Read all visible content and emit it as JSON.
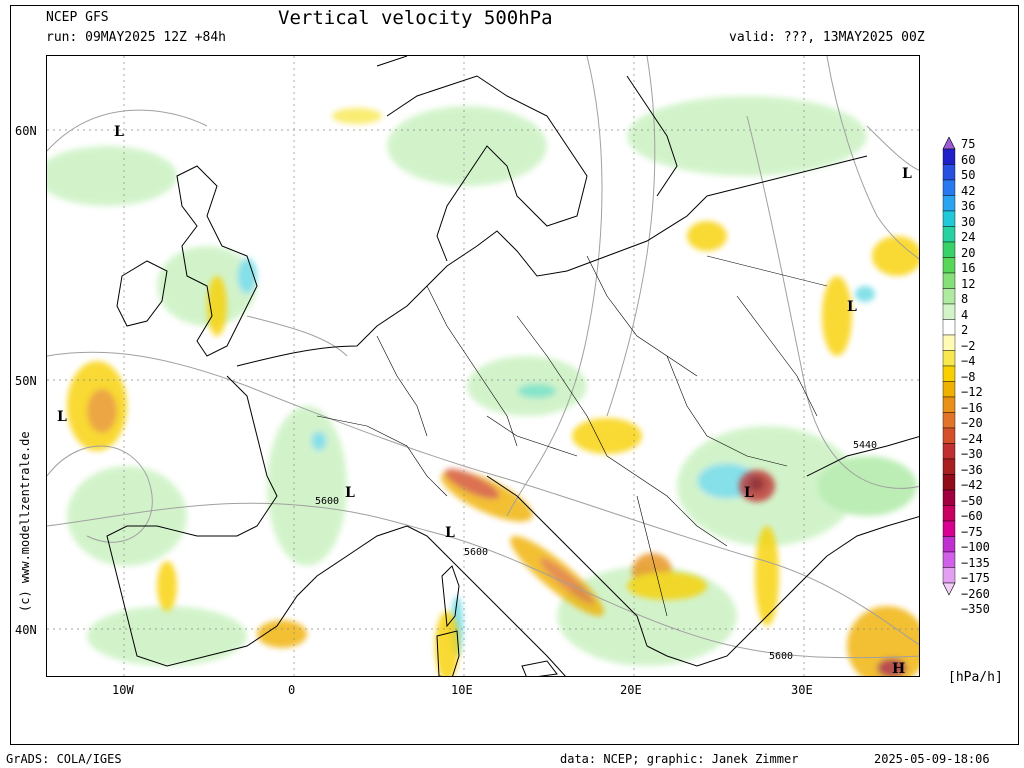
{
  "header": {
    "model": "NCEP GFS",
    "run": "run: 09MAY2025 12Z +84h",
    "title": "Vertical velocity 500hPa",
    "valid": "valid: ???, 13MAY2025 00Z"
  },
  "credit": "(c) www.modellzentrale.de",
  "footer": {
    "left": "GrADS: COLA/IGES",
    "middle": "data: NCEP; graphic: Janek Zimmer",
    "right": "2025-05-09-18:06"
  },
  "axes": {
    "lat_labels": [
      "60N",
      "50N",
      "40N"
    ],
    "lon_labels": [
      "10W",
      "0",
      "10E",
      "20E",
      "30E"
    ]
  },
  "pressure_labels": {
    "L": "L",
    "H": "H",
    "c5600": "5600",
    "c5440": "5440"
  },
  "legend": {
    "unit": "[hPa/h]",
    "levels": [
      "75",
      "60",
      "50",
      "42",
      "36",
      "30",
      "24",
      "20",
      "16",
      "12",
      "8",
      "4",
      "2",
      "−2",
      "−4",
      "−8",
      "−12",
      "−16",
      "−20",
      "−24",
      "−30",
      "−36",
      "−42",
      "−50",
      "−60",
      "−75",
      "−100",
      "−135",
      "−175",
      "−260",
      "−350"
    ],
    "colors": [
      "#9c5cd6",
      "#2020c8",
      "#2850e0",
      "#2878f0",
      "#2aa4f0",
      "#20c8d8",
      "#28d2a0",
      "#38d268",
      "#58d658",
      "#86e07a",
      "#aeeaa0",
      "#d2f4c8",
      "#ffffff",
      "#fffab4",
      "#f8e850",
      "#f8d000",
      "#f0b000",
      "#e89018",
      "#e07428",
      "#d45028",
      "#c03030",
      "#a82020",
      "#900c18",
      "#a00040",
      "#c80060",
      "#d80090",
      "#c030d0",
      "#d060e8",
      "#e4a0f0",
      "#f4d0f8"
    ]
  },
  "colors": {
    "land_bg": "#ffffff",
    "contour": "#a0a0a0",
    "coast": "#000000"
  }
}
